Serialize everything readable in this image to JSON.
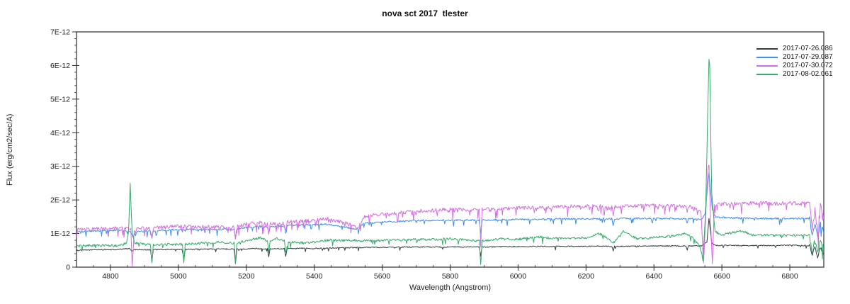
{
  "figure": {
    "title": "nova sct 2017  tlester",
    "xlabel": "Wavelength (Angstrom)",
    "ylabel": "Flux (erg/cm2/sec/A)",
    "background_color": "#ffffff",
    "frame_color": "#2b2b2b",
    "tick_text_color": "#222222"
  },
  "chart_data": {
    "type": "line",
    "title": "nova sct 2017  tlester",
    "xlabel": "Wavelength (Angstrom)",
    "ylabel": "Flux (erg/cm2/sec/A)",
    "grid": false,
    "legend_position": "top-right-inside",
    "xlim": [
      4700,
      6900
    ],
    "flux_scale": "1e-12 erg/cm2/sec/A",
    "ylim_1e12": [
      0,
      7
    ],
    "x_ticks": [
      4800,
      5000,
      5200,
      5400,
      5600,
      5800,
      6000,
      6200,
      6400,
      6600,
      6800
    ],
    "x_tick_labels": [
      "4800",
      "5000",
      "5200",
      "5400",
      "5600",
      "5800",
      "6000",
      "6200",
      "6400",
      "6600",
      "6800"
    ],
    "x_minor_step": 50,
    "y_ticks_1e12": [
      0,
      1,
      2,
      3,
      4,
      5,
      6,
      7
    ],
    "y_tick_labels": [
      "0",
      "1E-12",
      "2E-12",
      "3E-12",
      "4E-12",
      "5E-12",
      "6E-12",
      "7E-12"
    ],
    "y_minor_step_1e12": 0.2,
    "noisy_band": {
      "from": 6858,
      "to": 6900,
      "noise_factor": 3.0
    },
    "series": [
      {
        "name": "2017-07-26.086",
        "color": "#313d40",
        "noise_amp_1e12": 0.015,
        "dip_prob": 0.04,
        "dip_amp_1e12": 0.1,
        "points_wavelength_flux1e12": [
          [
            4700,
            0.5
          ],
          [
            4760,
            0.52
          ],
          [
            4820,
            0.52
          ],
          [
            4856,
            0.56
          ],
          [
            4862,
            0.48
          ],
          [
            4870,
            0.52
          ],
          [
            4918,
            0.52
          ],
          [
            4922,
            0.15
          ],
          [
            4926,
            0.52
          ],
          [
            5000,
            0.53
          ],
          [
            5012,
            0.53
          ],
          [
            5016,
            0.22
          ],
          [
            5020,
            0.53
          ],
          [
            5100,
            0.54
          ],
          [
            5164,
            0.54
          ],
          [
            5168,
            0.1
          ],
          [
            5172,
            0.54
          ],
          [
            5230,
            0.55
          ],
          [
            5262,
            0.55
          ],
          [
            5266,
            0.3
          ],
          [
            5270,
            0.55
          ],
          [
            5312,
            0.55
          ],
          [
            5316,
            0.32
          ],
          [
            5320,
            0.56
          ],
          [
            5400,
            0.56
          ],
          [
            5500,
            0.58
          ],
          [
            5600,
            0.59
          ],
          [
            5700,
            0.6
          ],
          [
            5800,
            0.6
          ],
          [
            5886,
            0.6
          ],
          [
            5890,
            0.33
          ],
          [
            5894,
            0.6
          ],
          [
            6000,
            0.61
          ],
          [
            6100,
            0.62
          ],
          [
            6200,
            0.62
          ],
          [
            6276,
            0.62
          ],
          [
            6280,
            0.48
          ],
          [
            6284,
            0.62
          ],
          [
            6400,
            0.63
          ],
          [
            6494,
            0.63
          ],
          [
            6498,
            0.52
          ],
          [
            6502,
            0.63
          ],
          [
            6540,
            0.63
          ],
          [
            6556,
            0.75
          ],
          [
            6562,
            1.45
          ],
          [
            6570,
            0.72
          ],
          [
            6580,
            0.65
          ],
          [
            6700,
            0.64
          ],
          [
            6800,
            0.65
          ],
          [
            6858,
            0.64
          ],
          [
            6866,
            0.38
          ],
          [
            6874,
            0.6
          ],
          [
            6882,
            0.3
          ],
          [
            6890,
            0.58
          ],
          [
            6900,
            0.4
          ]
        ]
      },
      {
        "name": "2017-07-29.087",
        "color": "#3d8fe8",
        "noise_amp_1e12": 0.025,
        "dip_prob": 0.08,
        "dip_amp_1e12": 0.18,
        "points_wavelength_flux1e12": [
          [
            4700,
            1.04
          ],
          [
            4760,
            1.08
          ],
          [
            4820,
            1.1
          ],
          [
            4858,
            1.05
          ],
          [
            4866,
            0.92
          ],
          [
            4880,
            1.05
          ],
          [
            4918,
            1.08
          ],
          [
            4922,
            0.85
          ],
          [
            4926,
            1.08
          ],
          [
            5000,
            1.12
          ],
          [
            5060,
            1.12
          ],
          [
            5164,
            1.12
          ],
          [
            5168,
            0.85
          ],
          [
            5172,
            1.14
          ],
          [
            5200,
            1.18
          ],
          [
            5240,
            1.22
          ],
          [
            5262,
            1.2
          ],
          [
            5266,
            1.0
          ],
          [
            5270,
            1.2
          ],
          [
            5312,
            1.22
          ],
          [
            5316,
            1.02
          ],
          [
            5320,
            1.24
          ],
          [
            5380,
            1.26
          ],
          [
            5440,
            1.28
          ],
          [
            5530,
            1.12
          ],
          [
            5545,
            1.3
          ],
          [
            5600,
            1.34
          ],
          [
            5700,
            1.38
          ],
          [
            5800,
            1.4
          ],
          [
            5886,
            1.4
          ],
          [
            5890,
            1.02
          ],
          [
            5894,
            1.4
          ],
          [
            6000,
            1.42
          ],
          [
            6100,
            1.43
          ],
          [
            6200,
            1.44
          ],
          [
            6276,
            1.44
          ],
          [
            6280,
            1.25
          ],
          [
            6284,
            1.44
          ],
          [
            6400,
            1.45
          ],
          [
            6494,
            1.44
          ],
          [
            6498,
            1.3
          ],
          [
            6502,
            1.44
          ],
          [
            6540,
            1.42
          ],
          [
            6550,
            1.55
          ],
          [
            6562,
            2.78
          ],
          [
            6572,
            1.7
          ],
          [
            6582,
            1.48
          ],
          [
            6700,
            1.45
          ],
          [
            6800,
            1.45
          ],
          [
            6858,
            1.45
          ],
          [
            6866,
            0.95
          ],
          [
            6874,
            1.3
          ],
          [
            6882,
            0.85
          ],
          [
            6890,
            1.3
          ],
          [
            6900,
            1.05
          ]
        ]
      },
      {
        "name": "2017-07-30.072",
        "color": "#d36ee0",
        "noise_amp_1e12": 0.055,
        "dip_prob": 0.12,
        "dip_amp_1e12": 0.28,
        "points_wavelength_flux1e12": [
          [
            4700,
            1.1
          ],
          [
            4760,
            1.14
          ],
          [
            4820,
            1.16
          ],
          [
            4852,
            1.14
          ],
          [
            4860,
            1.18
          ],
          [
            4864,
            0.06
          ],
          [
            4870,
            1.1
          ],
          [
            4900,
            1.18
          ],
          [
            4918,
            1.14
          ],
          [
            4922,
            0.88
          ],
          [
            4926,
            1.16
          ],
          [
            5000,
            1.22
          ],
          [
            5060,
            1.2
          ],
          [
            5164,
            1.18
          ],
          [
            5168,
            0.9
          ],
          [
            5172,
            1.22
          ],
          [
            5200,
            1.28
          ],
          [
            5240,
            1.32
          ],
          [
            5262,
            1.28
          ],
          [
            5266,
            1.02
          ],
          [
            5270,
            1.28
          ],
          [
            5312,
            1.3
          ],
          [
            5316,
            1.05
          ],
          [
            5320,
            1.34
          ],
          [
            5380,
            1.38
          ],
          [
            5440,
            1.44
          ],
          [
            5530,
            1.2
          ],
          [
            5545,
            1.5
          ],
          [
            5600,
            1.58
          ],
          [
            5700,
            1.66
          ],
          [
            5800,
            1.72
          ],
          [
            5886,
            1.72
          ],
          [
            5890,
            0.55
          ],
          [
            5894,
            1.72
          ],
          [
            6000,
            1.76
          ],
          [
            6100,
            1.79
          ],
          [
            6200,
            1.81
          ],
          [
            6276,
            1.81
          ],
          [
            6280,
            1.58
          ],
          [
            6284,
            1.81
          ],
          [
            6400,
            1.84
          ],
          [
            6494,
            1.82
          ],
          [
            6498,
            1.62
          ],
          [
            6502,
            1.82
          ],
          [
            6538,
            1.7
          ],
          [
            6546,
            0.08
          ],
          [
            6554,
            1.9
          ],
          [
            6561,
            3.45
          ],
          [
            6567,
            1.3
          ],
          [
            6572,
            0.1
          ],
          [
            6578,
            1.85
          ],
          [
            6600,
            1.88
          ],
          [
            6700,
            1.9
          ],
          [
            6800,
            1.9
          ],
          [
            6858,
            1.9
          ],
          [
            6866,
            1.25
          ],
          [
            6874,
            1.7
          ],
          [
            6882,
            1.1
          ],
          [
            6890,
            1.75
          ],
          [
            6900,
            1.4
          ]
        ]
      },
      {
        "name": "2017-08-02.061",
        "color": "#35aa68",
        "noise_amp_1e12": 0.035,
        "dip_prob": 0.05,
        "dip_amp_1e12": 0.18,
        "points_wavelength_flux1e12": [
          [
            4700,
            0.63
          ],
          [
            4760,
            0.65
          ],
          [
            4820,
            0.64
          ],
          [
            4846,
            0.7
          ],
          [
            4853,
            1.0
          ],
          [
            4858,
            2.5
          ],
          [
            4864,
            1.0
          ],
          [
            4872,
            0.72
          ],
          [
            4918,
            0.66
          ],
          [
            4922,
            0.1
          ],
          [
            4926,
            0.66
          ],
          [
            4990,
            0.68
          ],
          [
            5012,
            0.68
          ],
          [
            5016,
            0.12
          ],
          [
            5020,
            0.68
          ],
          [
            5080,
            0.72
          ],
          [
            5120,
            0.74
          ],
          [
            5164,
            0.72
          ],
          [
            5168,
            0.12
          ],
          [
            5172,
            0.72
          ],
          [
            5210,
            0.8
          ],
          [
            5240,
            0.88
          ],
          [
            5262,
            0.78
          ],
          [
            5266,
            0.45
          ],
          [
            5270,
            0.75
          ],
          [
            5290,
            0.85
          ],
          [
            5312,
            0.78
          ],
          [
            5316,
            0.45
          ],
          [
            5324,
            0.76
          ],
          [
            5360,
            0.72
          ],
          [
            5400,
            0.74
          ],
          [
            5440,
            0.8
          ],
          [
            5500,
            0.8
          ],
          [
            5560,
            0.78
          ],
          [
            5620,
            0.8
          ],
          [
            5700,
            0.82
          ],
          [
            5800,
            0.84
          ],
          [
            5856,
            0.8
          ],
          [
            5886,
            0.78
          ],
          [
            5890,
            0.05
          ],
          [
            5894,
            0.78
          ],
          [
            5950,
            0.84
          ],
          [
            6000,
            0.83
          ],
          [
            6060,
            0.9
          ],
          [
            6100,
            0.86
          ],
          [
            6160,
            0.86
          ],
          [
            6200,
            0.88
          ],
          [
            6240,
            1.0
          ],
          [
            6270,
            0.8
          ],
          [
            6280,
            0.72
          ],
          [
            6310,
            1.05
          ],
          [
            6350,
            0.85
          ],
          [
            6400,
            0.88
          ],
          [
            6450,
            0.92
          ],
          [
            6490,
            1.0
          ],
          [
            6510,
            0.92
          ],
          [
            6536,
            0.6
          ],
          [
            6544,
            0.22
          ],
          [
            6552,
            1.6
          ],
          [
            6558,
            4.5
          ],
          [
            6563,
            6.62
          ],
          [
            6570,
            2.2
          ],
          [
            6580,
            1.05
          ],
          [
            6600,
            0.96
          ],
          [
            6658,
            1.08
          ],
          [
            6690,
            0.95
          ],
          [
            6750,
            0.95
          ],
          [
            6800,
            0.95
          ],
          [
            6858,
            0.94
          ],
          [
            6866,
            0.5
          ],
          [
            6874,
            0.78
          ],
          [
            6882,
            0.42
          ],
          [
            6890,
            0.8
          ],
          [
            6900,
            0.55
          ]
        ]
      }
    ]
  }
}
